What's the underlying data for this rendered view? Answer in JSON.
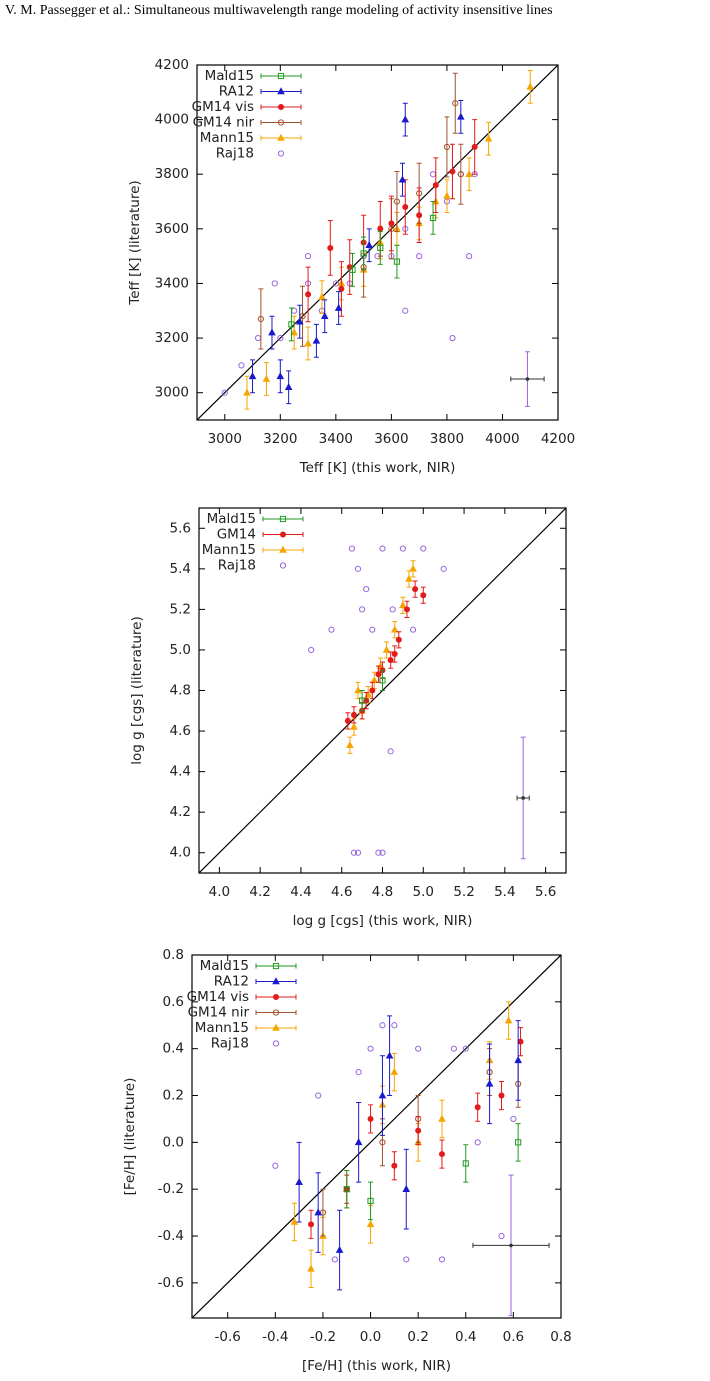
{
  "header": "V. M. Passegger et al.: Simultaneous multiwavelength range modeling of activity insensitive lines",
  "chart_data": [
    {
      "type": "scatter",
      "xlabel": "Teff [K] (this work, NIR)",
      "ylabel": "Teff [K] (literature)",
      "xlim": [
        2900,
        4200
      ],
      "ylim": [
        2900,
        4200
      ],
      "xticks": [
        3000,
        3200,
        3400,
        3600,
        3800,
        4000,
        4200
      ],
      "yticks": [
        3000,
        3200,
        3400,
        3600,
        3800,
        4000,
        4200
      ],
      "series": [
        {
          "name": "Mald15",
          "color": "#1f9a1f",
          "marker": "square-open",
          "x": [
            3460,
            3560,
            3620,
            3750,
            3240,
            3500
          ],
          "values": [
            3450,
            3530,
            3480,
            3640,
            3250,
            3510
          ],
          "yerr": [
            60,
            60,
            60,
            60,
            60,
            60
          ]
        },
        {
          "name": "RA12",
          "color": "#1a1acc",
          "marker": "triangle",
          "x": [
            3200,
            3230,
            3270,
            3330,
            3360,
            3410,
            3520,
            3650,
            3850,
            3100,
            3170,
            3640
          ],
          "values": [
            3060,
            3020,
            3260,
            3190,
            3280,
            3310,
            3540,
            4000,
            4010,
            3060,
            3220,
            3780
          ],
          "yerr": [
            60,
            60,
            60,
            60,
            60,
            60,
            60,
            60,
            60,
            60,
            60,
            60
          ]
        },
        {
          "name": "GM14 vis",
          "color": "#e31a1a",
          "marker": "circle",
          "x": [
            3380,
            3450,
            3500,
            3560,
            3600,
            3650,
            3700,
            3760,
            3820,
            3900,
            3300,
            3420
          ],
          "values": [
            3530,
            3460,
            3550,
            3600,
            3620,
            3680,
            3650,
            3760,
            3810,
            3900,
            3360,
            3380
          ],
          "yerr": [
            100,
            100,
            100,
            100,
            100,
            100,
            100,
            100,
            100,
            100,
            100,
            100
          ]
        },
        {
          "name": "GM14 nir",
          "color": "#a0522d",
          "marker": "circle-open",
          "x": [
            3130,
            3280,
            3500,
            3600,
            3700,
            3800,
            3830,
            3850,
            3620
          ],
          "values": [
            3270,
            3280,
            3460,
            3600,
            3730,
            3900,
            4060,
            3800,
            3700
          ],
          "yerr": [
            110,
            110,
            110,
            110,
            110,
            110,
            110,
            110,
            110
          ]
        },
        {
          "name": "Mann15",
          "color": "#f5a500",
          "marker": "triangle",
          "x": [
            3080,
            3150,
            3250,
            3300,
            3350,
            3420,
            3500,
            3560,
            3620,
            3700,
            3760,
            3800,
            3880,
            3950,
            4100
          ],
          "values": [
            3000,
            3050,
            3220,
            3180,
            3350,
            3400,
            3450,
            3550,
            3600,
            3620,
            3700,
            3720,
            3800,
            3930,
            4120
          ],
          "yerr": [
            60,
            60,
            60,
            60,
            60,
            60,
            60,
            60,
            60,
            60,
            60,
            60,
            60,
            60,
            60
          ]
        },
        {
          "name": "Raj18",
          "color": "#9966dd",
          "marker": "circle-open",
          "x": [
            3000,
            3060,
            3120,
            3200,
            3250,
            3300,
            3350,
            3400,
            3450,
            3500,
            3550,
            3600,
            3650,
            3700,
            3750,
            3800,
            3850,
            3900,
            3180,
            3300,
            3820,
            3880,
            3650
          ],
          "values": [
            3000,
            3100,
            3200,
            3200,
            3300,
            3400,
            3300,
            3400,
            3400,
            3500,
            3500,
            3500,
            3600,
            3500,
            3800,
            3700,
            3800,
            3800,
            3400,
            3500,
            3200,
            3500,
            3300
          ]
        }
      ],
      "error_example": {
        "x": 4090,
        "y": 3050,
        "xerr": 60,
        "yerr": 100
      }
    },
    {
      "type": "scatter",
      "xlabel": "log g [cgs] (this work, NIR)",
      "ylabel": "log g [cgs] (literature)",
      "xlim": [
        3.9,
        5.7
      ],
      "ylim": [
        3.9,
        5.7
      ],
      "xticks": [
        {
          "value": 4,
          "label": "4.0"
        },
        4.2,
        4.4,
        4.6,
        4.8,
        {
          "value": 5,
          "label": "5.0"
        },
        5.2,
        5.4,
        5.6
      ],
      "yticks": [
        {
          "value": 4,
          "label": "4.0"
        },
        4.2,
        4.4,
        4.6,
        4.8,
        {
          "value": 5,
          "label": "5.0"
        },
        5.2,
        5.4,
        5.6
      ],
      "series": [
        {
          "name": "Mald15",
          "color": "#1f9a1f",
          "marker": "square-open",
          "x": [
            4.7,
            4.8
          ],
          "values": [
            4.75,
            4.85
          ],
          "yerr": [
            0.05,
            0.05
          ]
        },
        {
          "name": "GM14",
          "color": "#e31a1a",
          "marker": "circle",
          "x": [
            4.63,
            4.66,
            4.7,
            4.72,
            4.75,
            4.78,
            4.8,
            4.84,
            4.88,
            4.92,
            4.96,
            5.0,
            4.86
          ],
          "values": [
            4.65,
            4.68,
            4.7,
            4.75,
            4.8,
            4.88,
            4.9,
            4.95,
            5.05,
            5.2,
            5.3,
            5.27,
            4.98
          ],
          "yerr": [
            0.04,
            0.04,
            0.04,
            0.04,
            0.04,
            0.04,
            0.04,
            0.04,
            0.04,
            0.04,
            0.04,
            0.04,
            0.04
          ]
        },
        {
          "name": "Mann15",
          "color": "#f5a500",
          "marker": "triangle",
          "x": [
            4.64,
            4.66,
            4.7,
            4.73,
            4.76,
            4.79,
            4.82,
            4.86,
            4.9,
            4.93,
            4.95,
            4.68
          ],
          "values": [
            4.53,
            4.62,
            4.7,
            4.78,
            4.85,
            4.92,
            5.0,
            5.1,
            5.22,
            5.35,
            5.4,
            4.8
          ],
          "yerr": [
            0.04,
            0.04,
            0.04,
            0.04,
            0.04,
            0.04,
            0.04,
            0.04,
            0.04,
            0.04,
            0.04,
            0.04
          ]
        },
        {
          "name": "Raj18",
          "color": "#9966dd",
          "marker": "circle-open",
          "x": [
            4.45,
            4.55,
            4.65,
            4.68,
            4.7,
            4.72,
            4.75,
            4.8,
            4.85,
            4.9,
            4.95,
            5.0,
            5.1,
            4.66,
            4.68,
            4.78,
            4.8,
            4.84
          ],
          "values": [
            5.0,
            5.1,
            5.5,
            5.4,
            5.2,
            5.3,
            5.1,
            5.5,
            5.2,
            5.5,
            5.1,
            5.5,
            5.4,
            4.0,
            4.0,
            4.0,
            4.0,
            4.5
          ]
        }
      ],
      "error_example": {
        "x": 5.49,
        "y": 4.27,
        "xerr": 0.03,
        "yerr": 0.3
      }
    },
    {
      "type": "scatter",
      "xlabel": "[Fe/H] (this work, NIR)",
      "ylabel": "[Fe/H] (literature)",
      "xlim": [
        -0.75,
        0.8
      ],
      "ylim": [
        -0.75,
        0.8
      ],
      "xticks": [
        -0.6,
        -0.4,
        -0.2,
        {
          "value": 0,
          "label": "0.0"
        },
        0.2,
        0.4,
        0.6,
        0.8
      ],
      "yticks": [
        -0.6,
        -0.4,
        -0.2,
        {
          "value": 0,
          "label": "0.0"
        },
        0.2,
        0.4,
        0.6,
        0.8
      ],
      "series": [
        {
          "name": "Mald15",
          "color": "#1f9a1f",
          "marker": "square-open",
          "x": [
            0.0,
            0.4,
            0.62,
            -0.1
          ],
          "values": [
            -0.25,
            -0.09,
            0.0,
            -0.2
          ],
          "yerr": [
            0.08,
            0.08,
            0.08,
            0.08
          ]
        },
        {
          "name": "RA12",
          "color": "#1a1acc",
          "marker": "triangle",
          "x": [
            -0.3,
            -0.22,
            -0.13,
            0.05,
            0.08,
            0.15,
            0.5,
            0.62,
            -0.05
          ],
          "values": [
            -0.17,
            -0.3,
            -0.46,
            0.2,
            0.37,
            -0.2,
            0.25,
            0.35,
            0.0
          ],
          "yerr": [
            0.17,
            0.17,
            0.17,
            0.17,
            0.17,
            0.17,
            0.17,
            0.17,
            0.17
          ]
        },
        {
          "name": "GM14 vis",
          "color": "#e31a1a",
          "marker": "circle",
          "x": [
            -0.25,
            -0.1,
            0.0,
            0.1,
            0.2,
            0.3,
            0.45,
            0.55,
            0.63
          ],
          "values": [
            -0.35,
            -0.2,
            0.1,
            -0.1,
            0.05,
            -0.05,
            0.15,
            0.2,
            0.43
          ],
          "yerr": [
            0.06,
            0.06,
            0.06,
            0.06,
            0.06,
            0.06,
            0.06,
            0.06,
            0.06
          ]
        },
        {
          "name": "GM14 nir",
          "color": "#a0522d",
          "marker": "circle-open",
          "x": [
            -0.2,
            0.05,
            0.2,
            0.5,
            0.62
          ],
          "values": [
            -0.3,
            0.0,
            0.1,
            0.3,
            0.25
          ],
          "yerr": [
            0.1,
            0.1,
            0.1,
            0.1,
            0.1
          ]
        },
        {
          "name": "Mann15",
          "color": "#f5a500",
          "marker": "triangle",
          "x": [
            -0.32,
            -0.25,
            -0.2,
            -0.1,
            0.0,
            0.05,
            0.1,
            0.2,
            0.3,
            0.5,
            0.58
          ],
          "values": [
            -0.34,
            -0.54,
            -0.4,
            -0.2,
            -0.35,
            0.16,
            0.3,
            0.0,
            0.1,
            0.35,
            0.52
          ],
          "yerr": [
            0.08,
            0.08,
            0.08,
            0.08,
            0.08,
            0.08,
            0.08,
            0.08,
            0.08,
            0.08,
            0.08
          ]
        },
        {
          "name": "Raj18",
          "color": "#9966dd",
          "marker": "circle-open",
          "x": [
            -0.4,
            -0.22,
            -0.05,
            0.0,
            0.1,
            0.2,
            0.3,
            0.4,
            0.5,
            0.55,
            -0.15,
            0.05,
            0.15,
            0.35,
            0.45,
            0.6
          ],
          "values": [
            -0.1,
            0.2,
            0.3,
            0.4,
            0.5,
            0.4,
            -0.5,
            0.4,
            0.3,
            -0.4,
            -0.5,
            0.5,
            -0.5,
            0.4,
            0.0,
            0.1
          ]
        }
      ],
      "error_example": {
        "x": 0.59,
        "y": -0.44,
        "xerr": 0.16,
        "yerr": 0.3
      }
    }
  ]
}
